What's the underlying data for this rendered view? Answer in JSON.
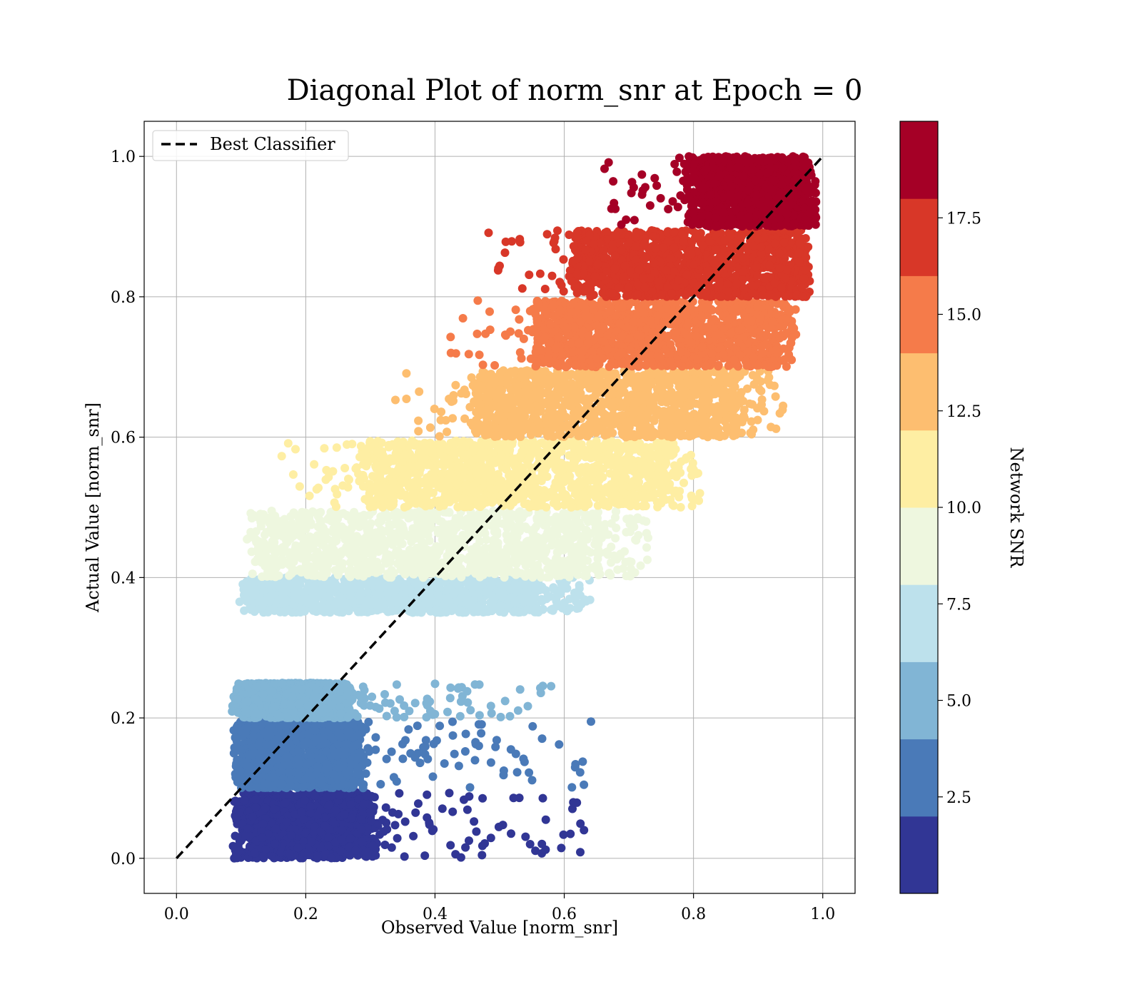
{
  "chart_data": {
    "type": "scatter",
    "title": "Diagonal Plot of norm_snr at Epoch = 0",
    "xlabel": "Observed Value [norm_snr]",
    "ylabel": "Actual Value [norm_snr]",
    "xlim": [
      -0.05,
      1.05
    ],
    "ylim": [
      -0.05,
      1.05
    ],
    "x_ticks": [
      "0.0",
      "0.2",
      "0.4",
      "0.6",
      "0.8",
      "1.0"
    ],
    "y_ticks": [
      "0.0",
      "0.2",
      "0.4",
      "0.6",
      "0.8",
      "1.0"
    ],
    "grid": true,
    "legend": {
      "position": "top-left",
      "entries": [
        {
          "label": "Best Classifier",
          "style": "dashed",
          "color": "#000000"
        }
      ]
    },
    "reference_line": {
      "label": "Best Classifier",
      "x": [
        0.0,
        1.0
      ],
      "y": [
        0.0,
        1.0
      ],
      "style": "dashed",
      "color": "#000000"
    },
    "colorbar": {
      "label": "Network SNR",
      "range": [
        0,
        20
      ],
      "ticks": [
        "2.5",
        "5.0",
        "7.5",
        "10.0",
        "12.5",
        "15.0",
        "17.5"
      ],
      "tick_values": [
        2.5,
        5.0,
        7.5,
        10.0,
        12.5,
        15.0,
        17.5
      ],
      "colors": [
        "#313695",
        "#4a7ab8",
        "#81b5d5",
        "#bde1ec",
        "#eef7df",
        "#feeea3",
        "#fdbe70",
        "#f57b4a",
        "#d83728",
        "#a50026"
      ]
    },
    "bands": [
      {
        "snr_range": [
          0,
          2
        ],
        "y_range": [
          0.0,
          0.095
        ],
        "x_core": [
          0.1,
          0.3
        ],
        "x_tail": 0.64,
        "color": "#313695"
      },
      {
        "snr_range": [
          2,
          4
        ],
        "y_range": [
          0.1,
          0.195
        ],
        "x_core": [
          0.1,
          0.28
        ],
        "x_tail": 0.65,
        "color": "#4a7ab8"
      },
      {
        "snr_range": [
          4,
          6
        ],
        "y_range": [
          0.2,
          0.25
        ],
        "x_core": [
          0.1,
          0.26
        ],
        "x_tail": 0.6,
        "color": "#81b5d5"
      },
      {
        "snr_range": [
          6,
          8
        ],
        "y_range": [
          0.35,
          0.4
        ],
        "x_core": [
          0.11,
          0.55
        ],
        "x_tail": 0.64,
        "color": "#bde1ec"
      },
      {
        "snr_range": [
          8,
          10
        ],
        "y_range": [
          0.4,
          0.495
        ],
        "x_core": [
          0.12,
          0.65
        ],
        "x_tail": 0.73,
        "color": "#eef7df"
      },
      {
        "snr_range": [
          10,
          12
        ],
        "y_range": [
          0.5,
          0.595
        ],
        "x_core": [
          0.3,
          0.75
        ],
        "x_tail": 0.81,
        "color": "#feeea3"
      },
      {
        "snr_range": [
          12,
          14
        ],
        "y_range": [
          0.6,
          0.695
        ],
        "x_core": [
          0.47,
          0.86
        ],
        "x_tail": 0.94,
        "color": "#fdbe70"
      },
      {
        "snr_range": [
          14,
          16
        ],
        "y_range": [
          0.7,
          0.795
        ],
        "x_core": [
          0.56,
          0.92
        ],
        "x_tail": 0.96,
        "color": "#f57b4a"
      },
      {
        "snr_range": [
          16,
          18
        ],
        "y_range": [
          0.8,
          0.895
        ],
        "x_core": [
          0.62,
          0.96
        ],
        "x_tail": 0.98,
        "color": "#d83728"
      },
      {
        "snr_range": [
          18,
          20
        ],
        "y_range": [
          0.9,
          1.0
        ],
        "x_core": [
          0.8,
          0.97
        ],
        "x_tail": 0.99,
        "color": "#a50026"
      }
    ]
  }
}
